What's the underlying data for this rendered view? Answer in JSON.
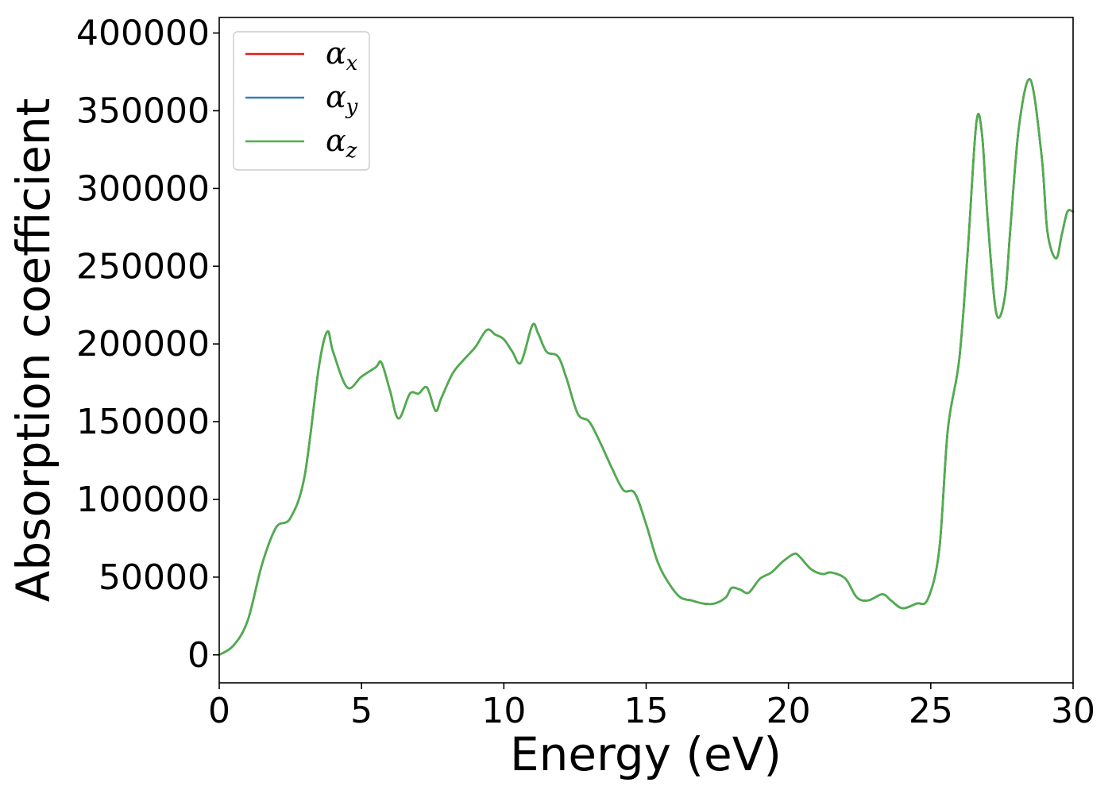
{
  "chart_data": {
    "type": "line",
    "xlabel": "Energy (eV)",
    "ylabel": "Absorption coefficient",
    "xlim": [
      0,
      30
    ],
    "ylim": [
      -18000,
      410000
    ],
    "x_ticks": [
      0,
      5,
      10,
      15,
      20,
      25,
      30
    ],
    "y_ticks": [
      0,
      50000,
      100000,
      150000,
      200000,
      250000,
      300000,
      350000,
      400000
    ],
    "grid": false,
    "legend_position": "top-left",
    "series": [
      {
        "name": "α_x",
        "symbol": "α",
        "subscript": "x",
        "color": "#e41a1c",
        "x": [
          0,
          0.5,
          1.0,
          1.5,
          2.0,
          2.5,
          3.0,
          3.5,
          3.8,
          4.0,
          4.5,
          5.0,
          5.5,
          5.7,
          6.0,
          6.3,
          6.7,
          7.0,
          7.3,
          7.6,
          7.8,
          8.2,
          8.6,
          9.0,
          9.4,
          9.7,
          10.0,
          10.3,
          10.6,
          11.0,
          11.2,
          11.5,
          11.9,
          12.2,
          12.6,
          13.0,
          13.4,
          13.8,
          14.2,
          14.6,
          15.0,
          15.4,
          15.8,
          16.2,
          16.6,
          17.0,
          17.4,
          17.8,
          18.0,
          18.3,
          18.6,
          19.0,
          19.4,
          19.8,
          20.2,
          20.4,
          20.8,
          21.2,
          21.5,
          22.0,
          22.4,
          22.8,
          23.3,
          23.6,
          24.0,
          24.5,
          24.9,
          25.3,
          25.6,
          26.0,
          26.3,
          26.6,
          26.8,
          27.0,
          27.3,
          27.6,
          27.8,
          28.1,
          28.5,
          28.9,
          29.1,
          29.4,
          29.6,
          29.8,
          30.0
        ],
        "values": [
          0,
          6000,
          22000,
          58000,
          82000,
          88000,
          115000,
          185000,
          208000,
          195000,
          172000,
          179000,
          185000,
          188000,
          170000,
          152000,
          168000,
          168000,
          172000,
          157000,
          165000,
          181000,
          190000,
          198000,
          209000,
          206000,
          203000,
          195000,
          188000,
          212000,
          207000,
          195000,
          192000,
          178000,
          155000,
          150000,
          136000,
          120000,
          106000,
          104000,
          84000,
          60000,
          46000,
          37000,
          35000,
          33000,
          33000,
          37000,
          43000,
          42000,
          40000,
          49000,
          53000,
          60000,
          65000,
          63000,
          55000,
          52000,
          53000,
          49000,
          37000,
          35000,
          39000,
          35000,
          30000,
          33000,
          36000,
          68000,
          145000,
          190000,
          260000,
          342000,
          335000,
          280000,
          220000,
          230000,
          275000,
          340000,
          370000,
          320000,
          272000,
          255000,
          270000,
          285000,
          285000
        ]
      },
      {
        "name": "α_y",
        "symbol": "α",
        "subscript": "y",
        "color": "#377eb8",
        "x": [
          0,
          0.5,
          1.0,
          1.5,
          2.0,
          2.5,
          3.0,
          3.5,
          3.8,
          4.0,
          4.5,
          5.0,
          5.5,
          5.7,
          6.0,
          6.3,
          6.7,
          7.0,
          7.3,
          7.6,
          7.8,
          8.2,
          8.6,
          9.0,
          9.4,
          9.7,
          10.0,
          10.3,
          10.6,
          11.0,
          11.2,
          11.5,
          11.9,
          12.2,
          12.6,
          13.0,
          13.4,
          13.8,
          14.2,
          14.6,
          15.0,
          15.4,
          15.8,
          16.2,
          16.6,
          17.0,
          17.4,
          17.8,
          18.0,
          18.3,
          18.6,
          19.0,
          19.4,
          19.8,
          20.2,
          20.4,
          20.8,
          21.2,
          21.5,
          22.0,
          22.4,
          22.8,
          23.3,
          23.6,
          24.0,
          24.5,
          24.9,
          25.3,
          25.6,
          26.0,
          26.3,
          26.6,
          26.8,
          27.0,
          27.3,
          27.6,
          27.8,
          28.1,
          28.5,
          28.9,
          29.1,
          29.4,
          29.6,
          29.8,
          30.0
        ],
        "values": [
          0,
          6000,
          22000,
          58000,
          82000,
          88000,
          115000,
          185000,
          208000,
          195000,
          172000,
          179000,
          185000,
          188000,
          170000,
          152000,
          168000,
          168000,
          172000,
          157000,
          165000,
          181000,
          190000,
          198000,
          209000,
          206000,
          203000,
          195000,
          188000,
          212000,
          207000,
          195000,
          192000,
          178000,
          155000,
          150000,
          136000,
          120000,
          106000,
          104000,
          84000,
          60000,
          46000,
          37000,
          35000,
          33000,
          33000,
          37000,
          43000,
          42000,
          40000,
          49000,
          53000,
          60000,
          65000,
          63000,
          55000,
          52000,
          53000,
          49000,
          37000,
          35000,
          39000,
          35000,
          30000,
          33000,
          36000,
          68000,
          145000,
          190000,
          260000,
          342000,
          335000,
          280000,
          220000,
          230000,
          275000,
          340000,
          370000,
          320000,
          272000,
          255000,
          270000,
          285000,
          285000
        ]
      },
      {
        "name": "α_z",
        "symbol": "α",
        "subscript": "z",
        "color": "#4daf4a",
        "x": [
          0,
          0.5,
          1.0,
          1.5,
          2.0,
          2.5,
          3.0,
          3.5,
          3.8,
          4.0,
          4.5,
          5.0,
          5.5,
          5.7,
          6.0,
          6.3,
          6.7,
          7.0,
          7.3,
          7.6,
          7.8,
          8.2,
          8.6,
          9.0,
          9.4,
          9.7,
          10.0,
          10.3,
          10.6,
          11.0,
          11.2,
          11.5,
          11.9,
          12.2,
          12.6,
          13.0,
          13.4,
          13.8,
          14.2,
          14.6,
          15.0,
          15.4,
          15.8,
          16.2,
          16.6,
          17.0,
          17.4,
          17.8,
          18.0,
          18.3,
          18.6,
          19.0,
          19.4,
          19.8,
          20.2,
          20.4,
          20.8,
          21.2,
          21.5,
          22.0,
          22.4,
          22.8,
          23.3,
          23.6,
          24.0,
          24.5,
          24.9,
          25.3,
          25.6,
          26.0,
          26.3,
          26.6,
          26.8,
          27.0,
          27.3,
          27.6,
          27.8,
          28.1,
          28.5,
          28.9,
          29.1,
          29.4,
          29.6,
          29.8,
          30.0
        ],
        "values": [
          0,
          6000,
          22000,
          58000,
          82000,
          88000,
          115000,
          185000,
          208000,
          195000,
          172000,
          179000,
          185000,
          188000,
          170000,
          152000,
          168000,
          168000,
          172000,
          157000,
          165000,
          181000,
          190000,
          198000,
          209000,
          206000,
          203000,
          195000,
          188000,
          212000,
          207000,
          195000,
          192000,
          178000,
          155000,
          150000,
          136000,
          120000,
          106000,
          104000,
          84000,
          60000,
          46000,
          37000,
          35000,
          33000,
          33000,
          37000,
          43000,
          42000,
          40000,
          49000,
          53000,
          60000,
          65000,
          63000,
          55000,
          52000,
          53000,
          49000,
          37000,
          35000,
          39000,
          35000,
          30000,
          33000,
          36000,
          68000,
          145000,
          190000,
          260000,
          342000,
          335000,
          280000,
          220000,
          230000,
          275000,
          340000,
          370000,
          320000,
          272000,
          255000,
          270000,
          285000,
          285000
        ]
      }
    ]
  }
}
